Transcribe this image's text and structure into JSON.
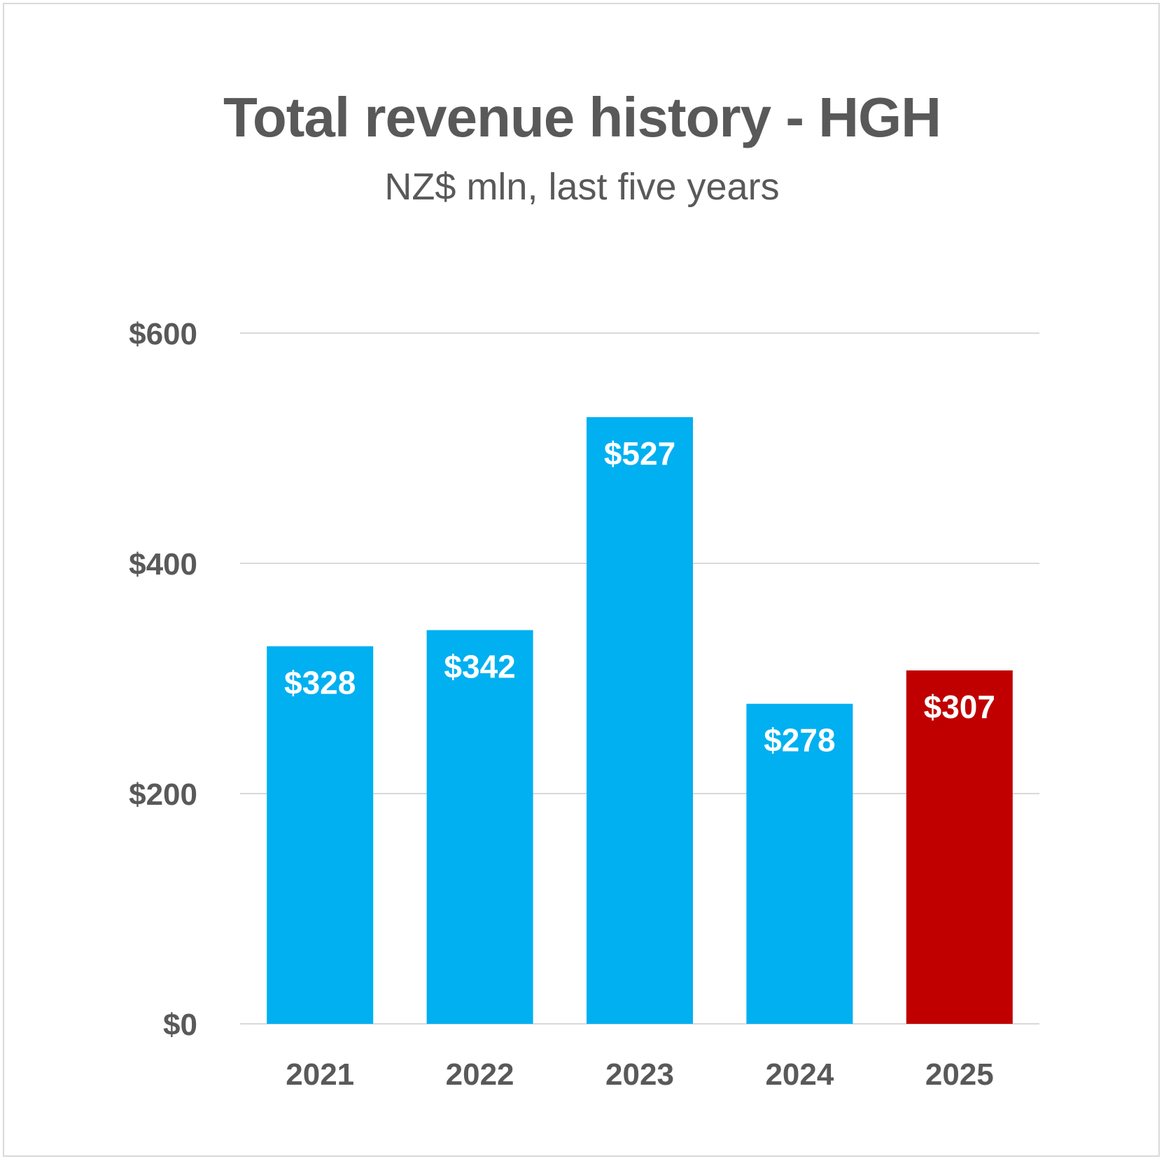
{
  "chart_data": {
    "type": "bar",
    "title": "Total revenue history - HGH",
    "subtitle": "NZ$ mln, last five years",
    "categories": [
      "2021",
      "2022",
      "2023",
      "2024",
      "2025"
    ],
    "values": [
      328,
      342,
      527,
      278,
      307
    ],
    "data_labels": [
      "$328",
      "$342",
      "$527",
      "$278",
      "$307"
    ],
    "bar_colors": [
      "#00b0f0",
      "#00b0f0",
      "#00b0f0",
      "#00b0f0",
      "#c00000"
    ],
    "ylim": [
      0,
      600
    ],
    "yticks": [
      0,
      200,
      400,
      600
    ],
    "ytick_labels": [
      "$0",
      "$200",
      "$400",
      "$600"
    ],
    "grid": true,
    "legend": "none",
    "xlabel": "",
    "ylabel": ""
  },
  "colors": {
    "text": "#595959",
    "gridline": "#d9d9d9",
    "frame": "#d9d9d9"
  }
}
